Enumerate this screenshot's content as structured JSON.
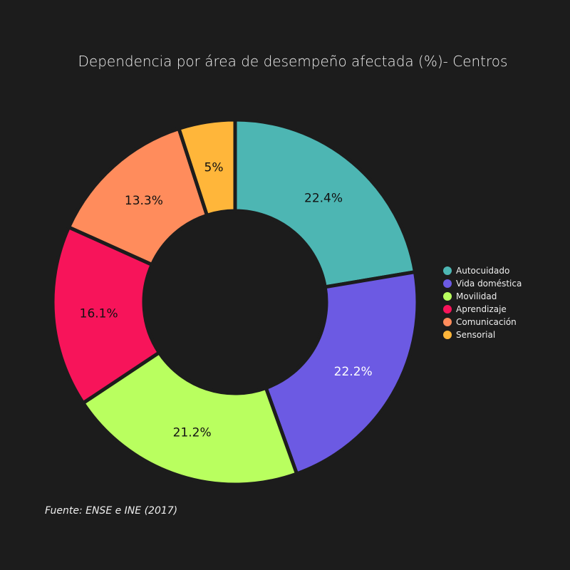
{
  "chart_data": {
    "type": "pie",
    "donut": true,
    "title": "Dependencia por área de desempeño afectada (%)- Centros",
    "categories": [
      "Autocuidado",
      "Vida doméstica",
      "Movilidad",
      "Aprendizaje",
      "Comunicación",
      "Sensorial"
    ],
    "values": [
      22.4,
      22.2,
      21.2,
      16.1,
      13.3,
      5
    ],
    "labels": [
      "22.4%",
      "22.2%",
      "21.2%",
      "16.1%",
      "13.3%",
      "5%"
    ],
    "colors": [
      "#4db6b3",
      "#6c5ae3",
      "#b9ff5f",
      "#f7145a",
      "#ff8c5c",
      "#ffb63a"
    ],
    "label_colors": [
      "#111111",
      "#ffffff",
      "#111111",
      "#111111",
      "#111111",
      "#111111"
    ],
    "direction": "clockwise",
    "start": "top",
    "legend_placement": "right",
    "source": "Fuente: ENSE e INE (2017)"
  }
}
